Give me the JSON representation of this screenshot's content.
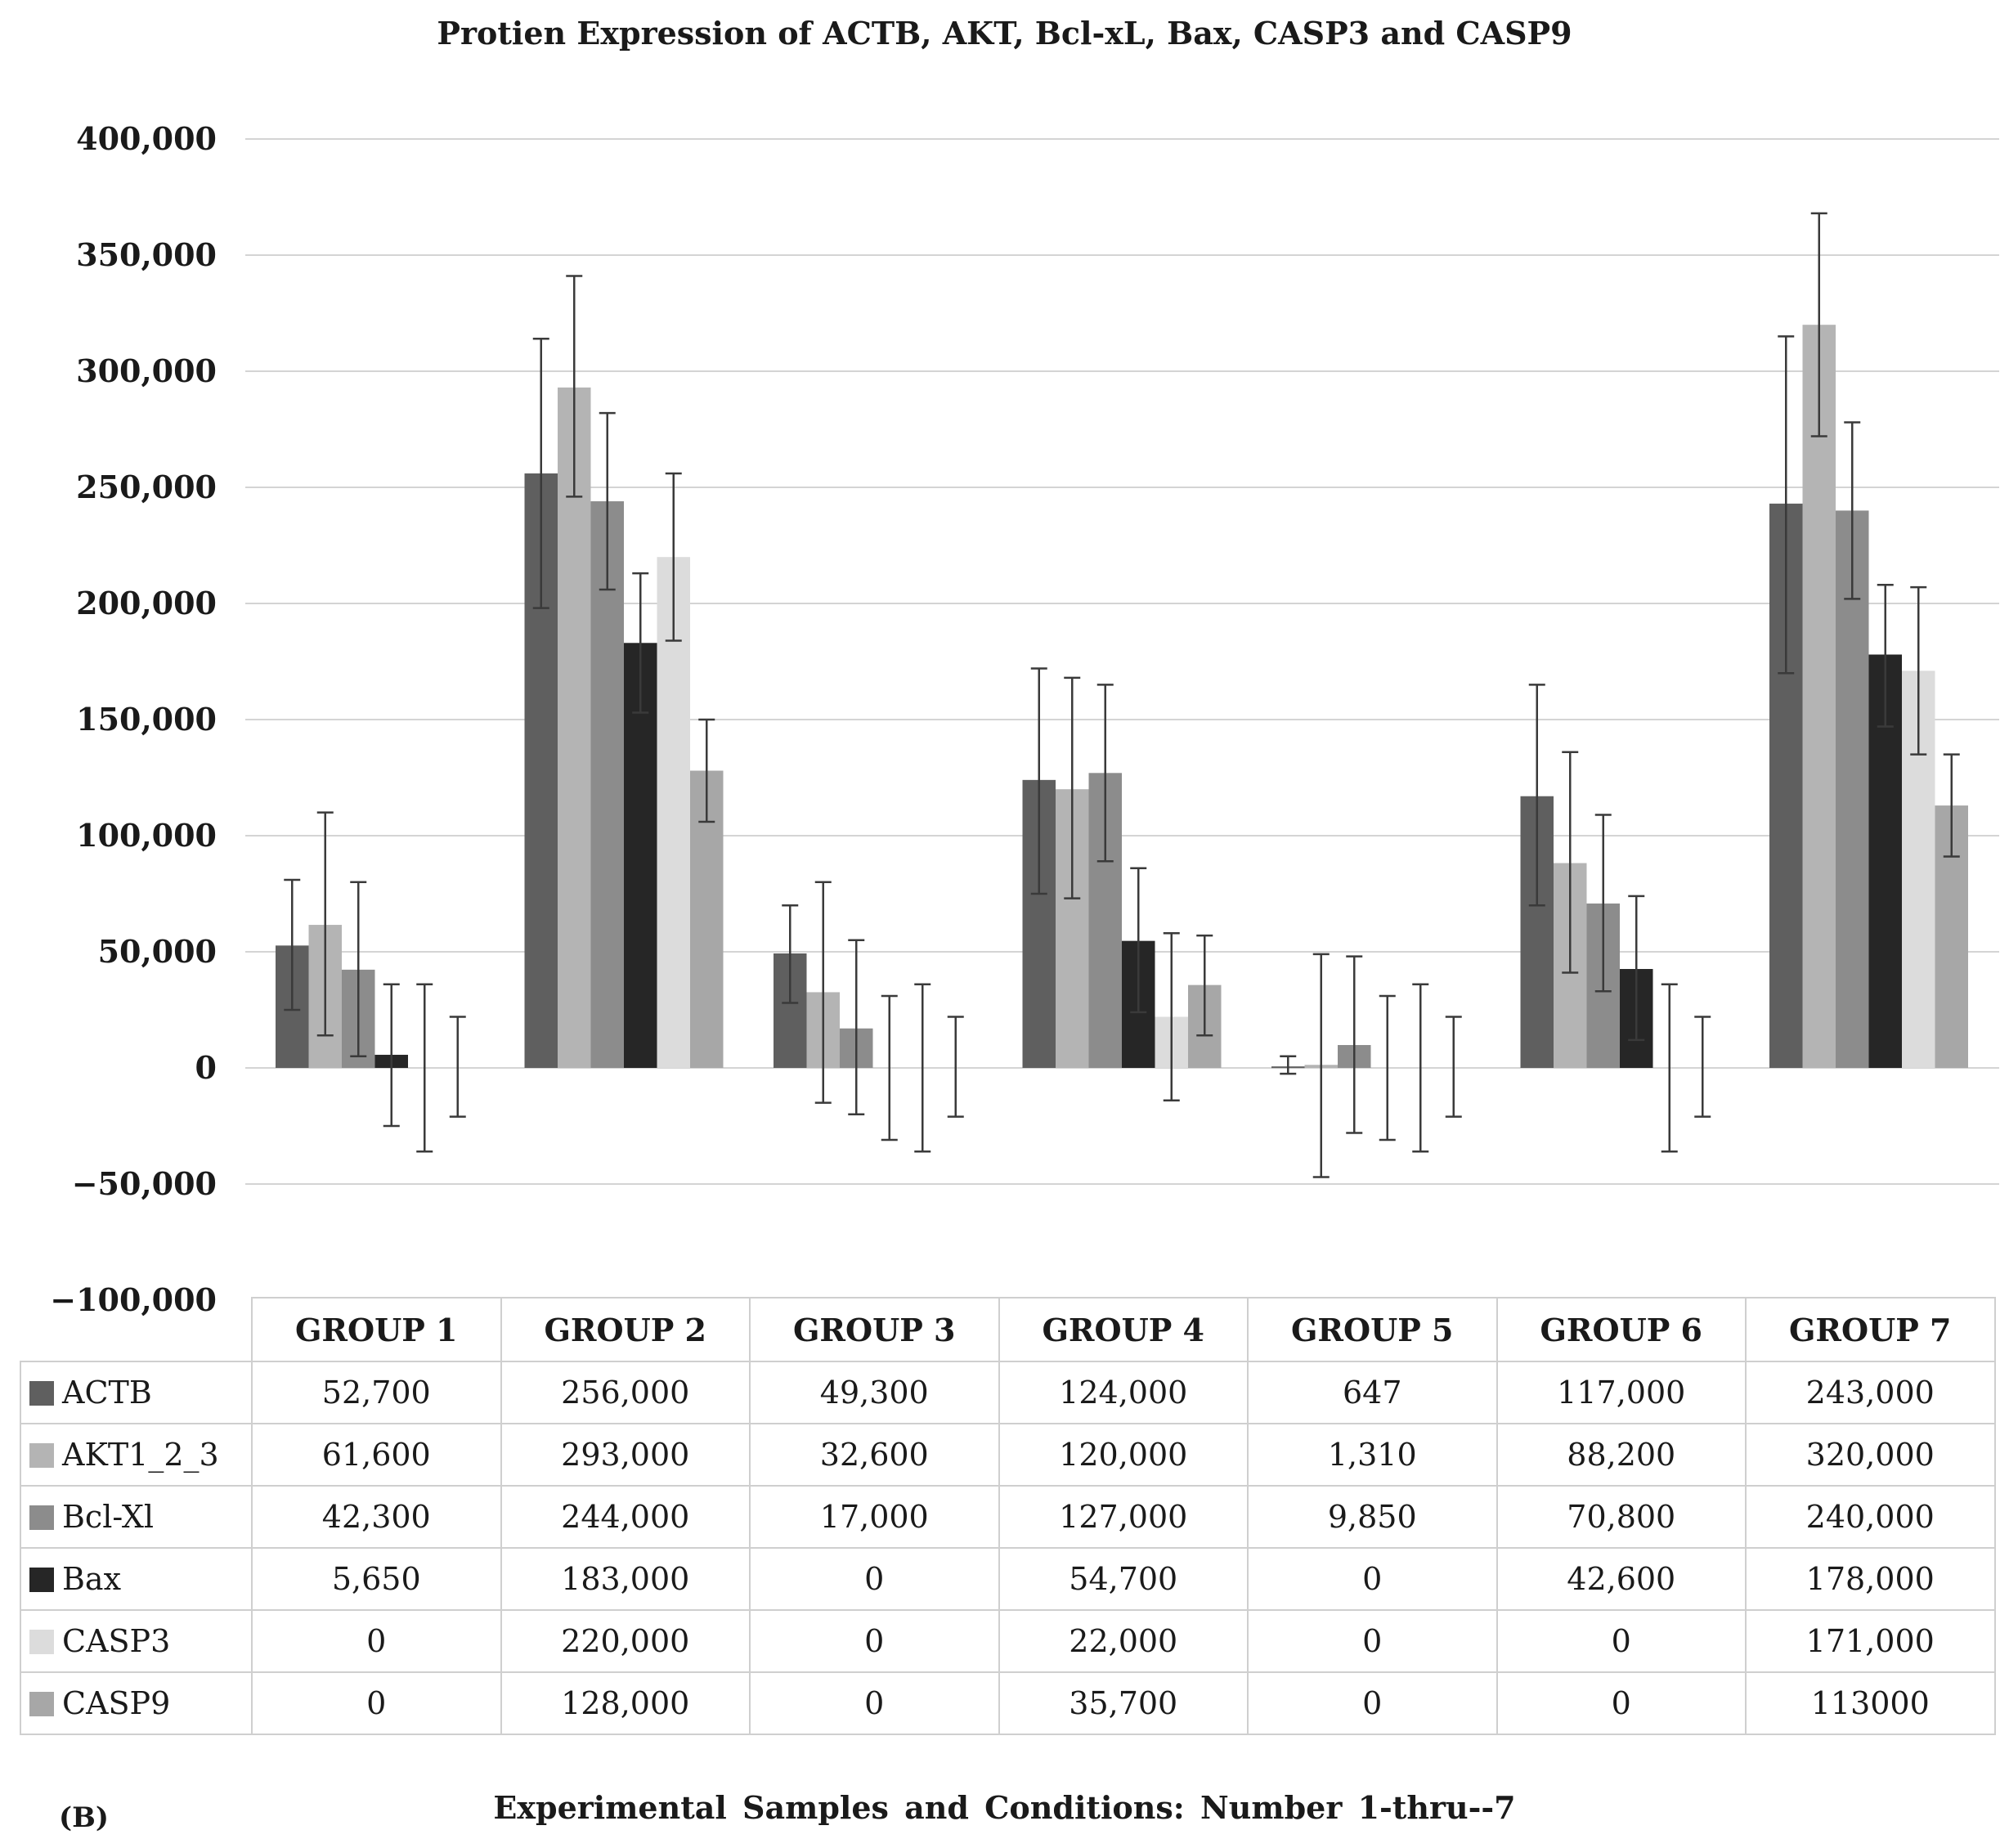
{
  "chart_data": {
    "type": "bar",
    "title": "Protien Expression of ACTB, AKT, Bcl-xL, Bax, CASP3 and CASP9",
    "xlabel": "Experimental Samples and Conditions: Number 1-thru--7",
    "ylabel": "",
    "panel_label": "(B)",
    "ylim": [
      -100000,
      400000
    ],
    "yticks": [
      -100000,
      -50000,
      0,
      50000,
      100000,
      150000,
      200000,
      250000,
      300000,
      350000,
      400000
    ],
    "ytick_labels": [
      "−100,000",
      "−50,000",
      "0",
      "50,000",
      "100,000",
      "150,000",
      "200,000",
      "250,000",
      "300,000",
      "350,000",
      "400,000"
    ],
    "grid": true,
    "legend": "data-table",
    "categories": [
      "GROUP 1",
      "GROUP 2",
      "GROUP 3",
      "GROUP 4",
      "GROUP 5",
      "GROUP 6",
      "GROUP 7"
    ],
    "series": [
      {
        "name": "ACTB",
        "color": "#5f5f5f",
        "values": [
          52700,
          256000,
          49300,
          124000,
          647,
          117000,
          243000
        ],
        "labels": [
          "52,700",
          "256,000",
          "49,300",
          "124,000",
          "647",
          "117,000",
          "243,000"
        ],
        "err_low": [
          25000,
          198000,
          28000,
          75000,
          -2500,
          70000,
          170000
        ],
        "err_high": [
          81000,
          314000,
          70000,
          172000,
          5000,
          165000,
          315000
        ]
      },
      {
        "name": "AKT1_2_3",
        "color": "#b4b4b4",
        "values": [
          61600,
          293000,
          32600,
          120000,
          1310,
          88200,
          320000
        ],
        "labels": [
          "61,600",
          "293,000",
          "32,600",
          "120,000",
          "1,310",
          "88,200",
          "320,000"
        ],
        "err_low": [
          14000,
          246000,
          -15000,
          73000,
          -47000,
          41000,
          272000
        ],
        "err_high": [
          110000,
          341000,
          80000,
          168000,
          49000,
          136000,
          368000
        ]
      },
      {
        "name": "Bcl-Xl",
        "color": "#8c8c8c",
        "values": [
          42300,
          244000,
          17000,
          127000,
          9850,
          70800,
          240000
        ],
        "labels": [
          "42,300",
          "244,000",
          "17,000",
          "127,000",
          "9,850",
          "70,800",
          "240,000"
        ],
        "err_low": [
          5000,
          206000,
          -20000,
          89000,
          -28000,
          33000,
          202000
        ],
        "err_high": [
          80000,
          282000,
          55000,
          165000,
          48000,
          109000,
          278000
        ]
      },
      {
        "name": "Bax",
        "color": "#262626",
        "values": [
          5650,
          183000,
          0,
          54700,
          0,
          42600,
          178000
        ],
        "labels": [
          "5,650",
          "183,000",
          "0",
          "54,700",
          "0",
          "42,600",
          "178,000"
        ],
        "err_low": [
          -25000,
          153000,
          -31000,
          24000,
          -31000,
          12000,
          147000
        ],
        "err_high": [
          36000,
          213000,
          31000,
          86000,
          31000,
          74000,
          208000
        ]
      },
      {
        "name": "CASP3",
        "color": "#dcdcdc",
        "values": [
          0,
          220000,
          0,
          22000,
          0,
          0,
          171000
        ],
        "labels": [
          "0",
          "220,000",
          "0",
          "22,000",
          "0",
          "0",
          "171,000"
        ],
        "err_low": [
          -36000,
          184000,
          -36000,
          -14000,
          -36000,
          -36000,
          135000
        ],
        "err_high": [
          36000,
          256000,
          36000,
          58000,
          36000,
          36000,
          207000
        ]
      },
      {
        "name": "CASP9",
        "color": "#a7a7a7",
        "values": [
          0,
          128000,
          0,
          35700,
          0,
          0,
          113000
        ],
        "labels": [
          "0",
          "128,000",
          "0",
          "35,700",
          "0",
          "0",
          "113000"
        ],
        "err_low": [
          -21000,
          106000,
          -21000,
          14000,
          -21000,
          -21000,
          91000
        ],
        "err_high": [
          22000,
          150000,
          22000,
          57000,
          22000,
          22000,
          135000
        ]
      }
    ]
  }
}
